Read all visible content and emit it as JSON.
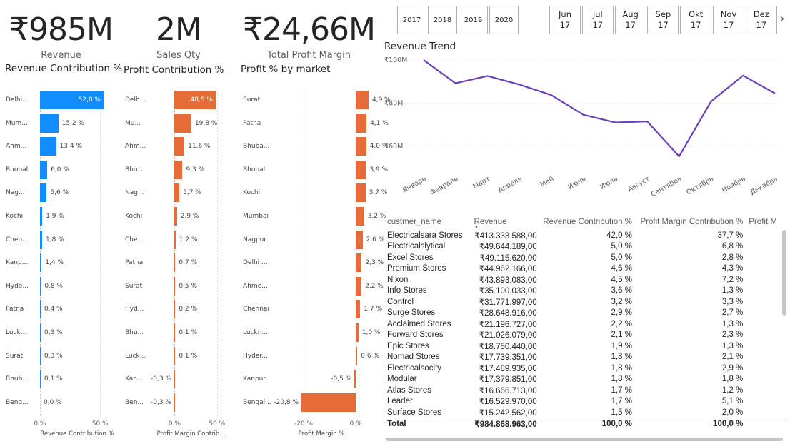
{
  "kpis": [
    {
      "value": "₹985M",
      "label": "Revenue"
    },
    {
      "value": "2M",
      "label": "Sales Qty"
    },
    {
      "value": "₹24,66M",
      "label": "Total Profit Margin"
    }
  ],
  "year_slicer": [
    "2017",
    "2018",
    "2019",
    "2020"
  ],
  "month_slicer": [
    {
      "month": "Jun",
      "year": "17"
    },
    {
      "month": "Jul",
      "year": "17"
    },
    {
      "month": "Aug",
      "year": "17"
    },
    {
      "month": "Sep",
      "year": "17"
    },
    {
      "month": "Okt",
      "year": "17"
    },
    {
      "month": "Nov",
      "year": "17"
    },
    {
      "month": "Dez",
      "year": "17"
    }
  ],
  "month_slicer_next": "›",
  "chart_data": [
    {
      "type": "bar",
      "title": "Revenue Contribution %",
      "orientation": "horizontal",
      "categories": [
        "Delhi...",
        "Mum...",
        "Ahm...",
        "Bhopal",
        "Nag...",
        "Kochi",
        "Chen...",
        "Kanp...",
        "Hyde...",
        "Patna",
        "Luck...",
        "Surat",
        "Bhub...",
        "Beng..."
      ],
      "values": [
        52.8,
        15.2,
        13.4,
        6.0,
        5.6,
        1.9,
        1.8,
        1.4,
        0.8,
        0.4,
        0.3,
        0.3,
        0.1,
        0.0
      ],
      "value_labels": [
        "52,8 %",
        "15,2 %",
        "13,4 %",
        "6,0 %",
        "5,6 %",
        "1,9 %",
        "1,8 %",
        "1,4 %",
        "0,8 %",
        "0,4 %",
        "0,3 %",
        "0,3 %",
        "0,1 %",
        "0,0 %"
      ],
      "xlabel": "Revenue Contribution %",
      "xlim": [
        0,
        52.8
      ],
      "ticks": [
        {
          "v": 0,
          "label": "0 %"
        },
        {
          "v": 50,
          "label": "50 %"
        }
      ],
      "color": "#118DFF",
      "selected_color": "#118DFF"
    },
    {
      "type": "bar",
      "title": "Profit Contribution %",
      "orientation": "horizontal",
      "categories": [
        "Delh...",
        "Mu...",
        "Ahm...",
        "Bho...",
        "Nag...",
        "Kochi",
        "Che...",
        "Patna",
        "Surat",
        "Hyd...",
        "Bhu...",
        "Luck...",
        "Kan...",
        "Ben..."
      ],
      "values": [
        48.5,
        19.8,
        11.6,
        9.3,
        5.7,
        2.9,
        1.2,
        0.7,
        0.5,
        0.2,
        0.1,
        0.1,
        -0.3,
        -0.3
      ],
      "value_labels": [
        "48,5 %",
        "19,8 %",
        "11,6 %",
        "9,3 %",
        "5,7 %",
        "2,9 %",
        "1,2 %",
        "0,7 %",
        "0,5 %",
        "0,2 %",
        "0,1 %",
        "0,1 %",
        "-0,3 %",
        "-0,3 %"
      ],
      "xlabel": "Profit Margin Contrib...",
      "xlim": [
        -0.3,
        48.5
      ],
      "ticks": [
        {
          "v": 0,
          "label": "0 %"
        },
        {
          "v": 50,
          "label": "50 %"
        }
      ],
      "color": "#E66C37"
    },
    {
      "type": "bar",
      "title": "Profit % by market",
      "orientation": "horizontal",
      "categories": [
        "Surat",
        "Patna",
        "Bhuba...",
        "Bhopal",
        "Kochi",
        "Mumbai",
        "Nagpur",
        "Delhi ...",
        "Ahme...",
        "Chennai",
        "Luckn...",
        "Hyder...",
        "Kanpur",
        "Bengal..."
      ],
      "values": [
        4.9,
        4.1,
        4.0,
        3.9,
        3.7,
        3.2,
        2.6,
        2.3,
        2.2,
        1.7,
        1.0,
        0.6,
        -0.5,
        -20.8
      ],
      "value_labels": [
        "4,9 %",
        "4,1 %",
        "4,0 %",
        "3,9 %",
        "3,7 %",
        "3,2 %",
        "2,6 %",
        "2,3 %",
        "2,2 %",
        "1,7 %",
        "1,0 %",
        "0,6 %",
        "-0,5 %",
        "-20,8 %"
      ],
      "xlabel": "Profit Margin %",
      "xlim": [
        -20.8,
        4.9
      ],
      "ticks": [
        {
          "v": -20,
          "label": "-20 %"
        },
        {
          "v": 0,
          "label": "0 %"
        }
      ],
      "color": "#E66C37"
    },
    {
      "type": "line",
      "title": "Revenue Trend",
      "x": [
        "Январь",
        "Февраль",
        "Март",
        "Апрель",
        "Май",
        "Июнь",
        "Июль",
        "Август",
        "Сентябрь",
        "Октябрь",
        "Ноябрь",
        "Декабрь"
      ],
      "series": [
        {
          "values": [
            100.0,
            89.2,
            92.6,
            88.6,
            83.7,
            74.6,
            71.0,
            71.5,
            55.3,
            80.8,
            92.8,
            84.5
          ]
        }
      ],
      "ylim": [
        53,
        100
      ],
      "yticks": [
        {
          "v": 100,
          "label": "₹100M"
        },
        {
          "v": 80,
          "label": "₹80M"
        },
        {
          "v": 60,
          "label": "₹60M"
        }
      ],
      "color": "#6B3FB9",
      "grid": true
    }
  ],
  "table": {
    "columns": [
      "custmer_name",
      "Revenue",
      "Revenue Contribution %",
      "Profit Margin Contribution %",
      "Profit M"
    ],
    "sort_indicator": "▼",
    "rows": [
      [
        "Electricalsara Stores",
        "₹413.333.588,00",
        "42,0 %",
        "37,7 %"
      ],
      [
        "Electricalslytical",
        "₹49.644.189,00",
        "5,0 %",
        "6,8 %"
      ],
      [
        "Excel Stores",
        "₹49.115.620,00",
        "5,0 %",
        "2,8 %"
      ],
      [
        "Premium Stores",
        "₹44.962.166,00",
        "4,6 %",
        "4,3 %"
      ],
      [
        "Nixon",
        "₹43.893.083,00",
        "4,5 %",
        "7,2 %"
      ],
      [
        "Info Stores",
        "₹35.100.033,00",
        "3,6 %",
        "1,3 %"
      ],
      [
        "Control",
        "₹31.771.997,00",
        "3,2 %",
        "3,3 %"
      ],
      [
        "Surge Stores",
        "₹28.648.916,00",
        "2,9 %",
        "2,7 %"
      ],
      [
        "Acclaimed Stores",
        "₹21.196.727,00",
        "2,2 %",
        "1,3 %"
      ],
      [
        "Forward Stores",
        "₹21.026.079,00",
        "2,1 %",
        "2,3 %"
      ],
      [
        "Epic Stores",
        "₹18.750.440,00",
        "1,9 %",
        "1,3 %"
      ],
      [
        "Nomad Stores",
        "₹17.739.351,00",
        "1,8 %",
        "2,1 %"
      ],
      [
        "Electricalsocity",
        "₹17.489.935,00",
        "1,8 %",
        "2,9 %"
      ],
      [
        "Modular",
        "₹17.379.851,00",
        "1,8 %",
        "1,8 %"
      ],
      [
        "Atlas Stores",
        "₹16.666.713,00",
        "1,7 %",
        "1,2 %"
      ],
      [
        "Leader",
        "₹16.529.970,00",
        "1,7 %",
        "5,1 %"
      ],
      [
        "Surface Stores",
        "₹15.242.562,00",
        "1,5 %",
        "2,0 %"
      ]
    ],
    "total": [
      "Total",
      "₹984.868.963,00",
      "100,0 %",
      "100,0 %"
    ]
  }
}
